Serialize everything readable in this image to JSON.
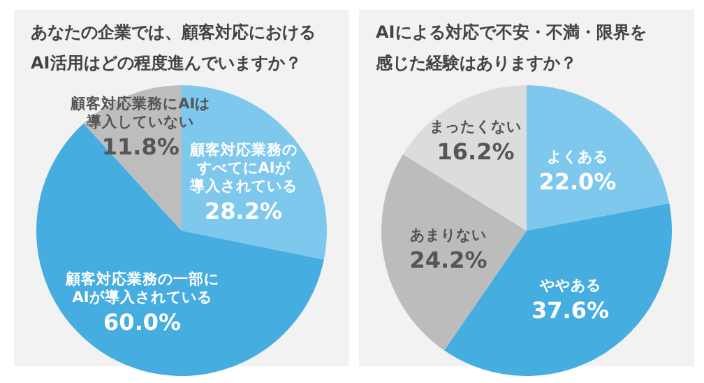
{
  "chart_data": [
    {
      "type": "pie",
      "title": "あなたの企業では、顧客対応におけるAI活用はどの程度進んでいますか？",
      "categories": [
        "顧客対応業務のすべてにAIが導入されている",
        "顧客対応業務の一部にAIが導入されている",
        "顧客対応業務にAIは導入していない"
      ],
      "values": [
        28.2,
        60.0,
        11.8
      ],
      "value_labels": [
        "28.2%",
        "60.0%",
        "11.8%"
      ],
      "colors": [
        "#7ec8ee",
        "#46ade0",
        "#bdbdbd"
      ]
    },
    {
      "type": "pie",
      "title": "AIによる対応で不安・不満・限界を感じた経験はありますか？",
      "categories": [
        "よくある",
        "ややある",
        "あまりない",
        "まったくない"
      ],
      "values": [
        22.0,
        37.6,
        24.2,
        16.2
      ],
      "value_labels": [
        "22.0%",
        "37.6%",
        "24.2%",
        "16.2%"
      ],
      "colors": [
        "#7ec8ee",
        "#46ade0",
        "#bcbcbc",
        "#dcdcdc"
      ]
    }
  ]
}
